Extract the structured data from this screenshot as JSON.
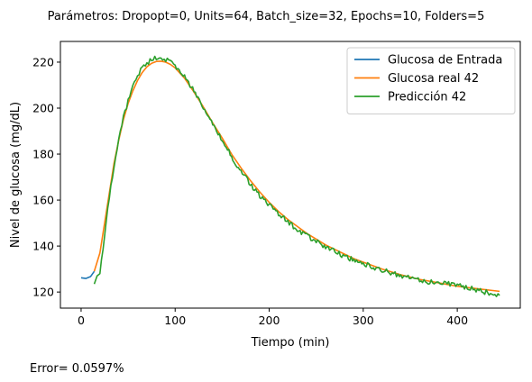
{
  "chart_data": {
    "type": "line",
    "title": "Parámetros: Dropopt=0, Units=64, Batch_size=32, Epochs=10, Folders=5",
    "xlabel": "Tiempo (min)",
    "ylabel": "Nivel de glucosa (mg/dL)",
    "xlim": [
      -22,
      467
    ],
    "ylim": [
      113,
      229
    ],
    "x_ticks": [
      0,
      100,
      200,
      300,
      400
    ],
    "y_ticks": [
      120,
      140,
      160,
      180,
      200,
      220
    ],
    "grid": false,
    "legend_position": "top-right",
    "series": [
      {
        "name": "Glucosa de Entrada",
        "color": "#1f77b4",
        "points": [
          [
            0,
            126.2
          ],
          [
            5,
            125.9
          ],
          [
            10,
            126.7
          ],
          [
            14,
            129.0
          ]
        ]
      },
      {
        "name": "Glucosa real 42",
        "color": "#ff7f0e",
        "points": [
          [
            14,
            129.0
          ],
          [
            20,
            137
          ],
          [
            25,
            150
          ],
          [
            30,
            163
          ],
          [
            35,
            176
          ],
          [
            40,
            186
          ],
          [
            45,
            195
          ],
          [
            50,
            202
          ],
          [
            55,
            207.5
          ],
          [
            60,
            212
          ],
          [
            65,
            215.5
          ],
          [
            70,
            218
          ],
          [
            75,
            219.5
          ],
          [
            80,
            220.3
          ],
          [
            85,
            220.4
          ],
          [
            90,
            220
          ],
          [
            95,
            219
          ],
          [
            100,
            217.5
          ],
          [
            110,
            213
          ],
          [
            120,
            207
          ],
          [
            130,
            200.5
          ],
          [
            140,
            193.5
          ],
          [
            150,
            187
          ],
          [
            160,
            180
          ],
          [
            170,
            174
          ],
          [
            180,
            168.5
          ],
          [
            190,
            163.5
          ],
          [
            200,
            159
          ],
          [
            210,
            155
          ],
          [
            220,
            151.5
          ],
          [
            230,
            148.5
          ],
          [
            240,
            145.5
          ],
          [
            250,
            143
          ],
          [
            260,
            140.5
          ],
          [
            270,
            138.5
          ],
          [
            280,
            136.5
          ],
          [
            290,
            134.5
          ],
          [
            300,
            133
          ],
          [
            320,
            130
          ],
          [
            340,
            127.5
          ],
          [
            360,
            125.5
          ],
          [
            380,
            124
          ],
          [
            400,
            122.5
          ],
          [
            420,
            121.5
          ],
          [
            445,
            120.3
          ]
        ]
      },
      {
        "name": "Predicción 42",
        "color": "#2ca02c",
        "points": [
          [
            14,
            123.5
          ],
          [
            17,
            127
          ],
          [
            20,
            128
          ],
          [
            25,
            145
          ],
          [
            30,
            161
          ],
          [
            35,
            175
          ],
          [
            40,
            186
          ],
          [
            45,
            196
          ],
          [
            50,
            203
          ],
          [
            55,
            209
          ],
          [
            60,
            214
          ],
          [
            65,
            217.5
          ],
          [
            70,
            219.5
          ],
          [
            75,
            221
          ],
          [
            80,
            222
          ],
          [
            85,
            221.5
          ],
          [
            90,
            221
          ],
          [
            95,
            220
          ],
          [
            100,
            218.5
          ],
          [
            110,
            213.5
          ],
          [
            120,
            207.5
          ],
          [
            130,
            200.5
          ],
          [
            140,
            193
          ],
          [
            150,
            186
          ],
          [
            160,
            179
          ],
          [
            170,
            172.5
          ],
          [
            180,
            167
          ],
          [
            190,
            162
          ],
          [
            200,
            158
          ],
          [
            210,
            154
          ],
          [
            220,
            150.5
          ],
          [
            230,
            147
          ],
          [
            240,
            144.5
          ],
          [
            250,
            142
          ],
          [
            260,
            139.5
          ],
          [
            270,
            137.5
          ],
          [
            280,
            135.5
          ],
          [
            290,
            134
          ],
          [
            300,
            132.5
          ],
          [
            320,
            129.5
          ],
          [
            340,
            127
          ],
          [
            360,
            125
          ],
          [
            380,
            124
          ],
          [
            400,
            123
          ],
          [
            420,
            121
          ],
          [
            440,
            119
          ],
          [
            445,
            118.5
          ]
        ]
      }
    ]
  },
  "footer": {
    "error_text": "Error= 0.0597%"
  }
}
